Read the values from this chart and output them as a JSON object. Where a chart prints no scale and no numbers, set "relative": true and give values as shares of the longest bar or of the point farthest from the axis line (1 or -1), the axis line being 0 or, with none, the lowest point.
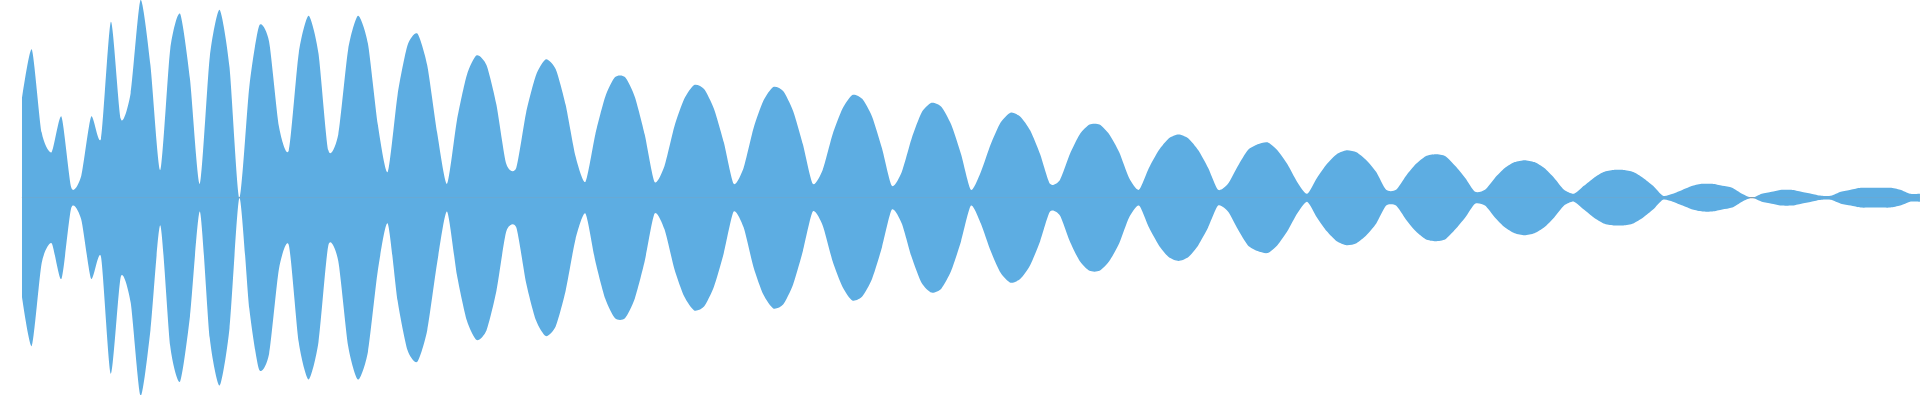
{
  "chart_data": {
    "type": "area",
    "relative": true,
    "categories": [
      null,
      null,
      null,
      null,
      null,
      null,
      null,
      null,
      null,
      null,
      null,
      null,
      null,
      null,
      null,
      null,
      null,
      null,
      null,
      null,
      null,
      null,
      null,
      null,
      null,
      null,
      null,
      null,
      null,
      null,
      null,
      null,
      null,
      null,
      null,
      null,
      null,
      null,
      null,
      null,
      null,
      null,
      null,
      null,
      null,
      null,
      null,
      null,
      null,
      null,
      null,
      null,
      null,
      null,
      null,
      null,
      null,
      null,
      null,
      null,
      null,
      null,
      null,
      null,
      null,
      null,
      null,
      null,
      null,
      null,
      null,
      null,
      null,
      null,
      null,
      null,
      null,
      null,
      null,
      null,
      null,
      null,
      null,
      null,
      null,
      null,
      null,
      null,
      null,
      null,
      null,
      null,
      null,
      null,
      null,
      null,
      null,
      null,
      null,
      null,
      null,
      null,
      null,
      null,
      null,
      null,
      null,
      null,
      null,
      null,
      null,
      null,
      null,
      null,
      null,
      null,
      null,
      null,
      null,
      null,
      null,
      null,
      null,
      null,
      null,
      null,
      null,
      null,
      null,
      null,
      null,
      null,
      null,
      null,
      null,
      null,
      null,
      null,
      null,
      null,
      null,
      null,
      null,
      null,
      null,
      null,
      null,
      null,
      null,
      null,
      null,
      null,
      null,
      null,
      null,
      null,
      null,
      null,
      null,
      null,
      null,
      null,
      null,
      null,
      null,
      null,
      null,
      null,
      null,
      null,
      null,
      null,
      null,
      null,
      null,
      null,
      null,
      null,
      null,
      null,
      null,
      null,
      null,
      null,
      null,
      null,
      null,
      null,
      null,
      null,
      null,
      null,
      null
    ],
    "series": [
      {
        "color": "#5dade2",
        "values": [
          0.5,
          0.75,
          0.33,
          0.23,
          0.41,
          0.05,
          0.11,
          0.41,
          0.3,
          0.89,
          0.4,
          0.53,
          1.0,
          0.67,
          0.14,
          0.75,
          0.93,
          0.6,
          0.07,
          0.71,
          0.95,
          0.66,
          0,
          0.56,
          0.87,
          0.79,
          0.36,
          0.24,
          0.73,
          0.92,
          0.73,
          0.24,
          0.32,
          0.75,
          0.92,
          0.78,
          0.37,
          0.13,
          0.52,
          0.77,
          0.83,
          0.67,
          0.33,
          0.07,
          0.39,
          0.62,
          0.72,
          0.67,
          0.47,
          0.17,
          0.15,
          0.43,
          0.62,
          0.7,
          0.65,
          0.47,
          0.21,
          0.08,
          0.32,
          0.51,
          0.61,
          0.61,
          0.51,
          0.32,
          0.08,
          0.16,
          0.36,
          0.5,
          0.57,
          0.55,
          0.45,
          0.28,
          0.07,
          0.15,
          0.35,
          0.49,
          0.56,
          0.54,
          0.44,
          0.27,
          0.07,
          0.14,
          0.32,
          0.45,
          0.52,
          0.5,
          0.41,
          0.25,
          0.06,
          0.13,
          0.3,
          0.43,
          0.48,
          0.46,
          0.37,
          0.22,
          0.04,
          0.13,
          0.27,
          0.38,
          0.43,
          0.41,
          0.34,
          0.22,
          0.07,
          0.09,
          0.22,
          0.32,
          0.37,
          0.37,
          0.32,
          0.23,
          0.1,
          0.04,
          0.15,
          0.24,
          0.3,
          0.32,
          0.3,
          0.24,
          0.15,
          0.04,
          0.07,
          0.16,
          0.24,
          0.27,
          0.28,
          0.24,
          0.17,
          0.08,
          0.02,
          0.1,
          0.17,
          0.22,
          0.24,
          0.23,
          0.19,
          0.13,
          0.04,
          0.04,
          0.11,
          0.17,
          0.21,
          0.22,
          0.21,
          0.16,
          0.1,
          0.03,
          0.04,
          0.1,
          0.15,
          0.18,
          0.19,
          0.18,
          0.15,
          0.1,
          0.04,
          0.02,
          0.06,
          0.1,
          0.13,
          0.14,
          0.14,
          0.13,
          0.1,
          0.06,
          0.01,
          0.02,
          0.04,
          0.06,
          0.07,
          0.07,
          0.06,
          0.05,
          0.02,
          0,
          0.02,
          0.03,
          0.04,
          0.04,
          0.03,
          0.02,
          0.01,
          0.01,
          0.03,
          0.04,
          0.05,
          0.05,
          0.05,
          0.05,
          0.04,
          0.02,
          0.02
        ]
      },
      {
        "color": "#5dade2",
        "values": [
          -0.5,
          -0.75,
          -0.33,
          -0.23,
          -0.41,
          -0.05,
          -0.11,
          -0.41,
          -0.3,
          -0.89,
          -0.4,
          -0.53,
          -1.0,
          -0.67,
          -0.14,
          -0.75,
          -0.93,
          -0.6,
          -0.07,
          -0.71,
          -0.95,
          -0.66,
          0,
          -0.56,
          -0.87,
          -0.79,
          -0.36,
          -0.24,
          -0.73,
          -0.92,
          -0.73,
          -0.24,
          -0.32,
          -0.75,
          -0.92,
          -0.78,
          -0.37,
          -0.13,
          -0.52,
          -0.77,
          -0.83,
          -0.67,
          -0.33,
          -0.07,
          -0.39,
          -0.62,
          -0.72,
          -0.67,
          -0.47,
          -0.17,
          -0.15,
          -0.43,
          -0.62,
          -0.7,
          -0.65,
          -0.47,
          -0.21,
          -0.08,
          -0.32,
          -0.51,
          -0.61,
          -0.61,
          -0.51,
          -0.32,
          -0.08,
          -0.16,
          -0.36,
          -0.5,
          -0.57,
          -0.55,
          -0.45,
          -0.28,
          -0.07,
          -0.15,
          -0.35,
          -0.49,
          -0.56,
          -0.54,
          -0.44,
          -0.27,
          -0.07,
          -0.14,
          -0.32,
          -0.45,
          -0.52,
          -0.5,
          -0.41,
          -0.25,
          -0.06,
          -0.13,
          -0.3,
          -0.43,
          -0.48,
          -0.46,
          -0.37,
          -0.22,
          -0.04,
          -0.13,
          -0.27,
          -0.38,
          -0.43,
          -0.41,
          -0.34,
          -0.22,
          -0.07,
          -0.09,
          -0.22,
          -0.32,
          -0.37,
          -0.37,
          -0.32,
          -0.23,
          -0.1,
          -0.04,
          -0.15,
          -0.24,
          -0.3,
          -0.32,
          -0.3,
          -0.24,
          -0.15,
          -0.04,
          -0.07,
          -0.16,
          -0.24,
          -0.27,
          -0.28,
          -0.24,
          -0.17,
          -0.08,
          -0.02,
          -0.1,
          -0.17,
          -0.22,
          -0.24,
          -0.23,
          -0.19,
          -0.13,
          -0.04,
          -0.04,
          -0.11,
          -0.17,
          -0.21,
          -0.22,
          -0.21,
          -0.16,
          -0.1,
          -0.03,
          -0.04,
          -0.1,
          -0.15,
          -0.18,
          -0.19,
          -0.18,
          -0.15,
          -0.1,
          -0.04,
          -0.02,
          -0.06,
          -0.1,
          -0.13,
          -0.14,
          -0.14,
          -0.13,
          -0.1,
          -0.06,
          -0.01,
          -0.02,
          -0.04,
          -0.06,
          -0.07,
          -0.07,
          -0.06,
          -0.05,
          -0.02,
          0,
          -0.02,
          -0.03,
          -0.04,
          -0.04,
          -0.03,
          -0.02,
          -0.01,
          -0.01,
          -0.03,
          -0.04,
          -0.05,
          -0.05,
          -0.05,
          -0.05,
          -0.04,
          -0.02,
          -0.02
        ]
      }
    ]
  }
}
